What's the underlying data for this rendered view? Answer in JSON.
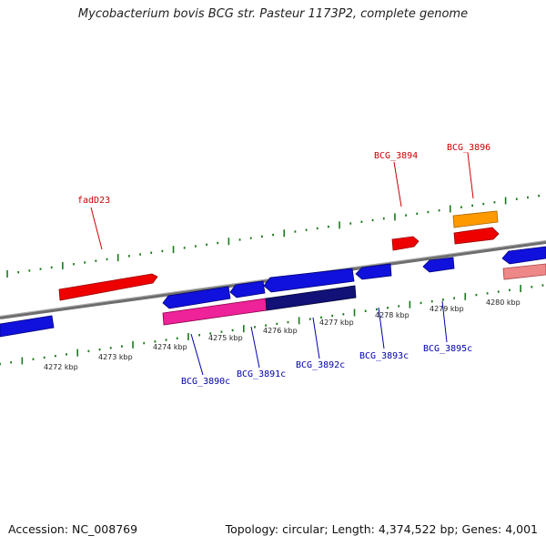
{
  "title": "Mycobacterium bovis BCG str. Pasteur 1173P2, complete genome",
  "footer": {
    "accession": "Accession: NC_008769",
    "summary": "Topology: circular; Length: 4,374,522 bp; Genes: 4,001"
  },
  "colors": {
    "backbone": "#808080",
    "tick": "#1a7a1a",
    "forward_label": "#cc0000",
    "reverse_label": "#0000aa",
    "red": "#ee0000",
    "orange": "#ff9900",
    "blue": "#1111dd",
    "pink": "#ee2299",
    "navy": "#111177",
    "salmon": "#ee8888"
  },
  "kbp_labels": [
    "4272 kbp",
    "4273 kbp",
    "4274 kbp",
    "4275 kbp",
    "4276 kbp",
    "4277 kbp",
    "4278 kbp",
    "4279 kbp",
    "4280 kbp"
  ],
  "forward_labels": [
    "fadD23",
    "BCG_3894",
    "BCG_3896"
  ],
  "reverse_labels": [
    "BCG_3890c",
    "BCG_3891c",
    "BCG_3892c",
    "BCG_3893c",
    "BCG_3895c"
  ]
}
